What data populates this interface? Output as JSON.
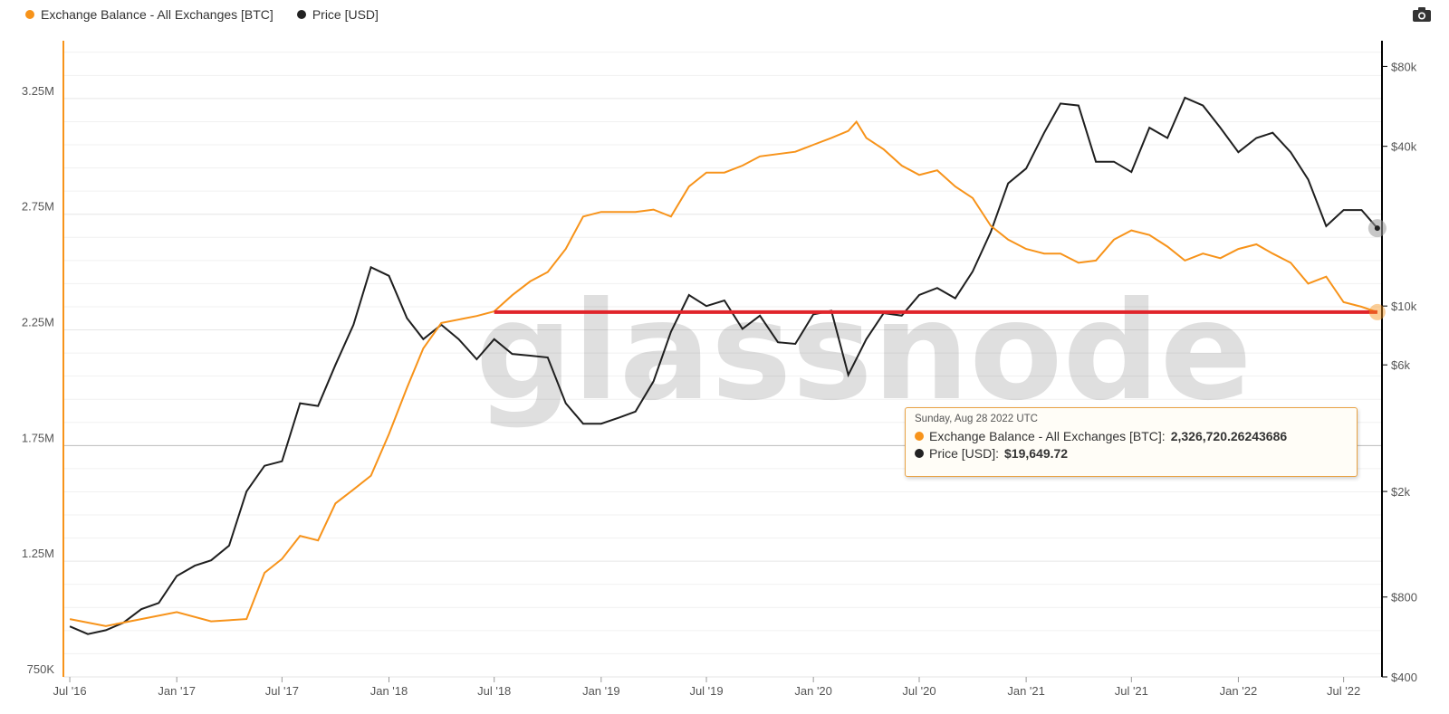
{
  "legend": {
    "balance_label": "Exchange Balance - All Exchanges [BTC]",
    "price_label": "Price [USD]"
  },
  "watermark": "glassnode",
  "tooltip": {
    "date": "Sunday, Aug 28 2022 UTC",
    "balance_label": "Exchange Balance - All Exchanges [BTC]:",
    "balance_value": "2,326,720.26243686",
    "price_label": "Price [USD]:",
    "price_value": "$19,649.72"
  },
  "toolbar": {
    "camera_icon": "camera-icon"
  },
  "colors": {
    "balance": "#f7931a",
    "price": "#1f1f1f",
    "reference_line": "#e0252b",
    "axis_left": "#f7931a",
    "axis_right": "#000000"
  },
  "chart_data": {
    "type": "line",
    "x_axis": {
      "range": [
        "2016-06-20",
        "2022-09-05"
      ],
      "tick_labels": [
        "Jul '16",
        "Jan '17",
        "Jul '17",
        "Jan '18",
        "Jul '18",
        "Jan '19",
        "Jul '19",
        "Jan '20",
        "Jul '20",
        "Jan '21",
        "Jul '21",
        "Jan '22",
        "Jul '22"
      ],
      "tick_dates": [
        "2016-07-01",
        "2017-01-01",
        "2017-07-01",
        "2018-01-01",
        "2018-07-01",
        "2019-01-01",
        "2019-07-01",
        "2020-01-01",
        "2020-07-01",
        "2021-01-01",
        "2021-07-01",
        "2022-01-01",
        "2022-07-01"
      ]
    },
    "y_left": {
      "range": [
        750000,
        3500000
      ],
      "ticks": [
        750000,
        1250000,
        1750000,
        2250000,
        2750000,
        3250000
      ],
      "tick_labels": [
        "750K",
        "1.25M",
        "1.75M",
        "2.25M",
        "2.75M",
        "3.25M"
      ]
    },
    "y_right": {
      "scale": "log",
      "range": [
        400,
        100000
      ],
      "ticks": [
        400,
        800,
        2000,
        6000,
        10000,
        40000,
        80000
      ],
      "tick_labels": [
        "$400",
        "$800",
        "$2k",
        "$6k",
        "$10k",
        "$40k",
        "$80k"
      ]
    },
    "reference_line": {
      "value": 2326720,
      "from": "2018-07-01",
      "to": "2022-08-28"
    },
    "series": [
      {
        "name": "Exchange Balance - All Exchanges [BTC]",
        "axis": "left",
        "points": [
          [
            "2016-07-01",
            1000000
          ],
          [
            "2016-09-01",
            970000
          ],
          [
            "2016-11-01",
            1000000
          ],
          [
            "2017-01-01",
            1030000
          ],
          [
            "2017-03-01",
            990000
          ],
          [
            "2017-05-01",
            1000000
          ],
          [
            "2017-06-01",
            1200000
          ],
          [
            "2017-07-01",
            1260000
          ],
          [
            "2017-08-01",
            1360000
          ],
          [
            "2017-09-01",
            1340000
          ],
          [
            "2017-10-01",
            1500000
          ],
          [
            "2017-11-01",
            1560000
          ],
          [
            "2017-12-01",
            1620000
          ],
          [
            "2018-01-01",
            1800000
          ],
          [
            "2018-02-01",
            2000000
          ],
          [
            "2018-03-01",
            2170000
          ],
          [
            "2018-04-01",
            2280000
          ],
          [
            "2018-06-01",
            2310000
          ],
          [
            "2018-07-01",
            2330000
          ],
          [
            "2018-08-01",
            2400000
          ],
          [
            "2018-09-01",
            2460000
          ],
          [
            "2018-10-01",
            2500000
          ],
          [
            "2018-11-01",
            2600000
          ],
          [
            "2018-12-01",
            2740000
          ],
          [
            "2019-01-01",
            2760000
          ],
          [
            "2019-03-01",
            2760000
          ],
          [
            "2019-04-01",
            2770000
          ],
          [
            "2019-05-01",
            2740000
          ],
          [
            "2019-06-01",
            2870000
          ],
          [
            "2019-07-01",
            2930000
          ],
          [
            "2019-08-01",
            2930000
          ],
          [
            "2019-09-01",
            2960000
          ],
          [
            "2019-10-01",
            3000000
          ],
          [
            "2019-12-01",
            3020000
          ],
          [
            "2020-01-01",
            3050000
          ],
          [
            "2020-02-01",
            3080000
          ],
          [
            "2020-03-01",
            3110000
          ],
          [
            "2020-03-15",
            3150000
          ],
          [
            "2020-04-01",
            3080000
          ],
          [
            "2020-05-01",
            3030000
          ],
          [
            "2020-06-01",
            2960000
          ],
          [
            "2020-07-01",
            2920000
          ],
          [
            "2020-08-01",
            2940000
          ],
          [
            "2020-09-01",
            2870000
          ],
          [
            "2020-10-01",
            2820000
          ],
          [
            "2020-11-01",
            2700000
          ],
          [
            "2020-12-01",
            2640000
          ],
          [
            "2021-01-01",
            2600000
          ],
          [
            "2021-02-01",
            2580000
          ],
          [
            "2021-03-01",
            2580000
          ],
          [
            "2021-04-01",
            2540000
          ],
          [
            "2021-05-01",
            2550000
          ],
          [
            "2021-06-01",
            2640000
          ],
          [
            "2021-07-01",
            2680000
          ],
          [
            "2021-08-01",
            2660000
          ],
          [
            "2021-09-01",
            2610000
          ],
          [
            "2021-10-01",
            2550000
          ],
          [
            "2021-11-01",
            2580000
          ],
          [
            "2021-12-01",
            2560000
          ],
          [
            "2022-01-01",
            2600000
          ],
          [
            "2022-02-01",
            2620000
          ],
          [
            "2022-03-01",
            2580000
          ],
          [
            "2022-04-01",
            2540000
          ],
          [
            "2022-05-01",
            2450000
          ],
          [
            "2022-06-01",
            2480000
          ],
          [
            "2022-07-01",
            2370000
          ],
          [
            "2022-08-01",
            2350000
          ],
          [
            "2022-08-28",
            2326720
          ]
        ]
      },
      {
        "name": "Price [USD]",
        "axis": "right",
        "points": [
          [
            "2016-07-01",
            620
          ],
          [
            "2016-08-01",
            580
          ],
          [
            "2016-09-01",
            600
          ],
          [
            "2016-10-01",
            640
          ],
          [
            "2016-11-01",
            720
          ],
          [
            "2016-12-01",
            760
          ],
          [
            "2017-01-01",
            960
          ],
          [
            "2017-02-01",
            1050
          ],
          [
            "2017-03-01",
            1100
          ],
          [
            "2017-04-01",
            1250
          ],
          [
            "2017-05-01",
            2000
          ],
          [
            "2017-06-01",
            2500
          ],
          [
            "2017-07-01",
            2600
          ],
          [
            "2017-08-01",
            4300
          ],
          [
            "2017-09-01",
            4200
          ],
          [
            "2017-10-01",
            6000
          ],
          [
            "2017-11-01",
            8500
          ],
          [
            "2017-12-01",
            14000
          ],
          [
            "2018-01-01",
            13000
          ],
          [
            "2018-02-01",
            9000
          ],
          [
            "2018-03-01",
            7500
          ],
          [
            "2018-04-01",
            8500
          ],
          [
            "2018-05-01",
            7500
          ],
          [
            "2018-06-01",
            6300
          ],
          [
            "2018-07-01",
            7500
          ],
          [
            "2018-08-01",
            6600
          ],
          [
            "2018-09-01",
            6500
          ],
          [
            "2018-10-01",
            6400
          ],
          [
            "2018-11-01",
            4300
          ],
          [
            "2018-12-01",
            3600
          ],
          [
            "2019-01-01",
            3600
          ],
          [
            "2019-02-01",
            3800
          ],
          [
            "2019-03-01",
            4000
          ],
          [
            "2019-04-01",
            5200
          ],
          [
            "2019-05-01",
            8000
          ],
          [
            "2019-06-01",
            11000
          ],
          [
            "2019-07-01",
            10000
          ],
          [
            "2019-08-01",
            10500
          ],
          [
            "2019-09-01",
            8200
          ],
          [
            "2019-10-01",
            9200
          ],
          [
            "2019-11-01",
            7300
          ],
          [
            "2019-12-01",
            7200
          ],
          [
            "2020-01-01",
            9300
          ],
          [
            "2020-02-01",
            9600
          ],
          [
            "2020-03-01",
            5500
          ],
          [
            "2020-04-01",
            7500
          ],
          [
            "2020-05-01",
            9400
          ],
          [
            "2020-06-01",
            9200
          ],
          [
            "2020-07-01",
            11000
          ],
          [
            "2020-08-01",
            11700
          ],
          [
            "2020-09-01",
            10700
          ],
          [
            "2020-10-01",
            13500
          ],
          [
            "2020-11-01",
            19000
          ],
          [
            "2020-12-01",
            29000
          ],
          [
            "2021-01-01",
            33000
          ],
          [
            "2021-02-01",
            45000
          ],
          [
            "2021-03-01",
            58000
          ],
          [
            "2021-04-01",
            57000
          ],
          [
            "2021-05-01",
            35000
          ],
          [
            "2021-06-01",
            35000
          ],
          [
            "2021-07-01",
            32000
          ],
          [
            "2021-08-01",
            47000
          ],
          [
            "2021-09-01",
            43000
          ],
          [
            "2021-10-01",
            61000
          ],
          [
            "2021-11-01",
            57000
          ],
          [
            "2021-12-01",
            47000
          ],
          [
            "2022-01-01",
            38000
          ],
          [
            "2022-02-01",
            43000
          ],
          [
            "2022-03-01",
            45000
          ],
          [
            "2022-04-01",
            38000
          ],
          [
            "2022-05-01",
            30000
          ],
          [
            "2022-06-01",
            20000
          ],
          [
            "2022-07-01",
            23000
          ],
          [
            "2022-08-01",
            23000
          ],
          [
            "2022-08-28",
            19649.72
          ]
        ]
      }
    ]
  }
}
